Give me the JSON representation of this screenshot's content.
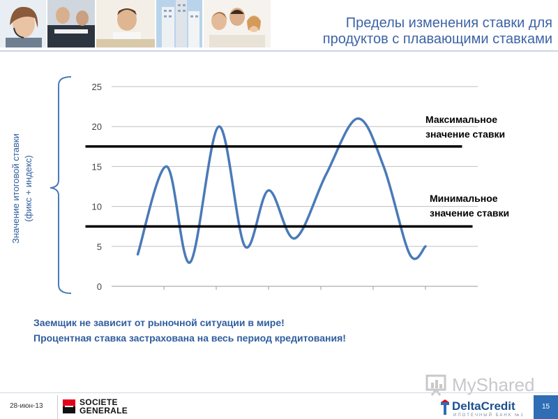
{
  "header": {
    "title_line1": "Пределы изменения ставки для",
    "title_line2": "продуктов с плавающими ставками",
    "photos": [
      "woman-with-headset-photo",
      "office-workers-photo",
      "smiling-man-photo",
      "apartment-buildings-photo",
      "family-photo"
    ]
  },
  "chart_data": {
    "type": "line",
    "ylabel_line1": "Значение итоговой ставки",
    "ylabel_line2": "(фикс + индекс)",
    "ylim": [
      0,
      25
    ],
    "yticks": [
      0,
      5,
      10,
      15,
      20,
      25
    ],
    "yticks_labels": [
      "0",
      "5",
      "10",
      "15",
      "20",
      "25"
    ],
    "xlim": [
      0,
      7
    ],
    "xticks": [
      1,
      2,
      3,
      4,
      5,
      6
    ],
    "grid": true,
    "series": [
      {
        "color": "#4a7ab8",
        "x": [
          0.5,
          1.05,
          1.5,
          2.05,
          2.55,
          3.0,
          3.5,
          4.1,
          4.7,
          5.2,
          5.7,
          6.0
        ],
        "values": [
          4,
          15,
          3,
          20,
          5,
          12,
          6,
          14,
          21,
          15,
          4,
          5
        ]
      }
    ],
    "reference_lines": [
      {
        "label_line1": "Максимальное",
        "label_line2": "значение ставки",
        "value": 17.5,
        "x_start": -0.5,
        "x_end": 6.7
      },
      {
        "label_line1": "Минимальное",
        "label_line2": "значение ставки",
        "value": 7.5,
        "x_start": -0.5,
        "x_end": 6.9
      }
    ]
  },
  "footer": {
    "message_line1": "Заемщик не зависит от рыночной ситуации в мире!",
    "message_line2": "Процентная ставка застрахована на весь период кредитования!",
    "date": "28-июн-13",
    "bank_name_line1": "SOCIETE",
    "bank_name_line2": "GENERALE",
    "watermark": "MyShared",
    "partner_logo": "DeltaCredit",
    "partner_tagline": "ИПОТЕЧНЫЙ БАНК №1",
    "page_number": "15"
  },
  "colors": {
    "title": "#3d63a6",
    "message": "#2f5d9e",
    "series": "#4a7ab8",
    "reference_line": "#000000",
    "page_badge": "#2f6db4"
  }
}
